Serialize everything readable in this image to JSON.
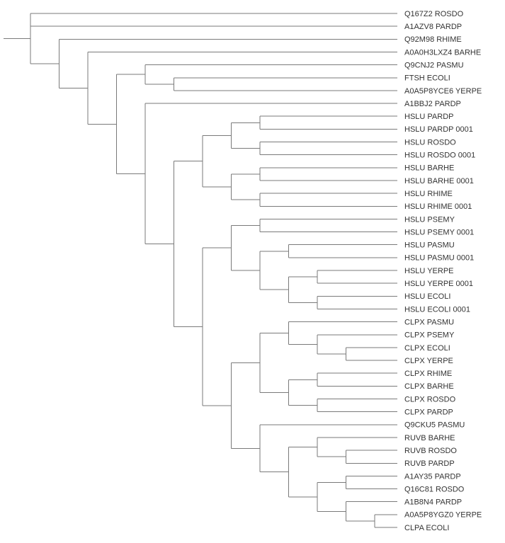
{
  "tree": {
    "children": [
      {
        "leaf": "Q167Z2 ROSDO"
      },
      {
        "leaf": "A1AZV8 PARDP"
      },
      {
        "children": [
          {
            "leaf": "Q92M98 RHIME"
          },
          {
            "children": [
              {
                "leaf": "A0A0H3LXZ4 BARHE"
              },
              {
                "children": [
                  {
                    "children": [
                      {
                        "leaf": "Q9CNJ2 PASMU"
                      },
                      {
                        "children": [
                          {
                            "leaf": "FTSH ECOLI"
                          },
                          {
                            "leaf": "A0A5P8YCE6 YERPE"
                          }
                        ]
                      }
                    ]
                  },
                  {
                    "children": [
                      {
                        "leaf": "A1BBJ2 PARDP"
                      },
                      {
                        "children": [
                          {
                            "children": [
                              {
                                "children": [
                                  {
                                    "children": [
                                      {
                                        "leaf": "HSLU PARDP"
                                      },
                                      {
                                        "leaf": "HSLU PARDP 0001"
                                      }
                                    ]
                                  },
                                  {
                                    "children": [
                                      {
                                        "leaf": "HSLU ROSDO"
                                      },
                                      {
                                        "leaf": "HSLU ROSDO 0001"
                                      }
                                    ]
                                  }
                                ]
                              },
                              {
                                "children": [
                                  {
                                    "children": [
                                      {
                                        "leaf": "HSLU BARHE"
                                      },
                                      {
                                        "leaf": "HSLU BARHE 0001"
                                      }
                                    ]
                                  },
                                  {
                                    "children": [
                                      {
                                        "leaf": "HSLU RHIME"
                                      },
                                      {
                                        "leaf": "HSLU RHIME 0001"
                                      }
                                    ]
                                  }
                                ]
                              }
                            ]
                          },
                          {
                            "children": [
                              {
                                "children": [
                                  {
                                    "children": [
                                      {
                                        "leaf": "HSLU PSEMY"
                                      },
                                      {
                                        "leaf": "HSLU PSEMY 0001"
                                      }
                                    ]
                                  },
                                  {
                                    "children": [
                                      {
                                        "children": [
                                          {
                                            "leaf": "HSLU PASMU"
                                          },
                                          {
                                            "leaf": "HSLU PASMU 0001"
                                          }
                                        ]
                                      },
                                      {
                                        "children": [
                                          {
                                            "children": [
                                              {
                                                "leaf": "HSLU YERPE"
                                              },
                                              {
                                                "leaf": "HSLU YERPE 0001"
                                              }
                                            ]
                                          },
                                          {
                                            "children": [
                                              {
                                                "leaf": "HSLU ECOLI"
                                              },
                                              {
                                                "leaf": "HSLU ECOLI 0001"
                                              }
                                            ]
                                          }
                                        ]
                                      }
                                    ]
                                  }
                                ]
                              },
                              {
                                "children": [
                                  {
                                    "children": [
                                      {
                                        "children": [
                                          {
                                            "leaf": "CLPX PASMU"
                                          },
                                          {
                                            "children": [
                                              {
                                                "leaf": "CLPX PSEMY"
                                              },
                                              {
                                                "children": [
                                                  {
                                                    "leaf": "CLPX ECOLI"
                                                  },
                                                  {
                                                    "leaf": "CLPX YERPE"
                                                  }
                                                ]
                                              }
                                            ]
                                          }
                                        ]
                                      },
                                      {
                                        "children": [
                                          {
                                            "children": [
                                              {
                                                "leaf": "CLPX RHIME"
                                              },
                                              {
                                                "leaf": "CLPX BARHE"
                                              }
                                            ]
                                          },
                                          {
                                            "children": [
                                              {
                                                "leaf": "CLPX ROSDO"
                                              },
                                              {
                                                "leaf": "CLPX PARDP"
                                              }
                                            ]
                                          }
                                        ]
                                      }
                                    ]
                                  },
                                  {
                                    "children": [
                                      {
                                        "leaf": "Q9CKU5 PASMU"
                                      },
                                      {
                                        "children": [
                                          {
                                            "children": [
                                              {
                                                "leaf": "RUVB BARHE"
                                              },
                                              {
                                                "children": [
                                                  {
                                                    "leaf": "RUVB ROSDO"
                                                  },
                                                  {
                                                    "leaf": "RUVB PARDP"
                                                  }
                                                ]
                                              }
                                            ]
                                          },
                                          {
                                            "children": [
                                              {
                                                "children": [
                                                  {
                                                    "leaf": "A1AY35 PARDP"
                                                  },
                                                  {
                                                    "leaf": "Q16C81 ROSDO"
                                                  }
                                                ]
                                              },
                                              {
                                                "children": [
                                                  {
                                                    "leaf": "A1B8N4 PARDP"
                                                  },
                                                  {
                                                    "children": [
                                                      {
                                                        "leaf": "A0A5P8YGZ0 YERPE"
                                                      },
                                                      {
                                                        "leaf": "CLPA ECOLI"
                                                      }
                                                    ]
                                                  }
                                                ]
                                              }
                                            ]
                                          }
                                        ]
                                      }
                                    ]
                                  }
                                ]
                              }
                            ]
                          }
                        ]
                      }
                    ]
                  }
                ]
              }
            ]
          }
        ]
      }
    ]
  },
  "style": {
    "line_color": "#7a7a7a",
    "label_color": "#333333"
  }
}
